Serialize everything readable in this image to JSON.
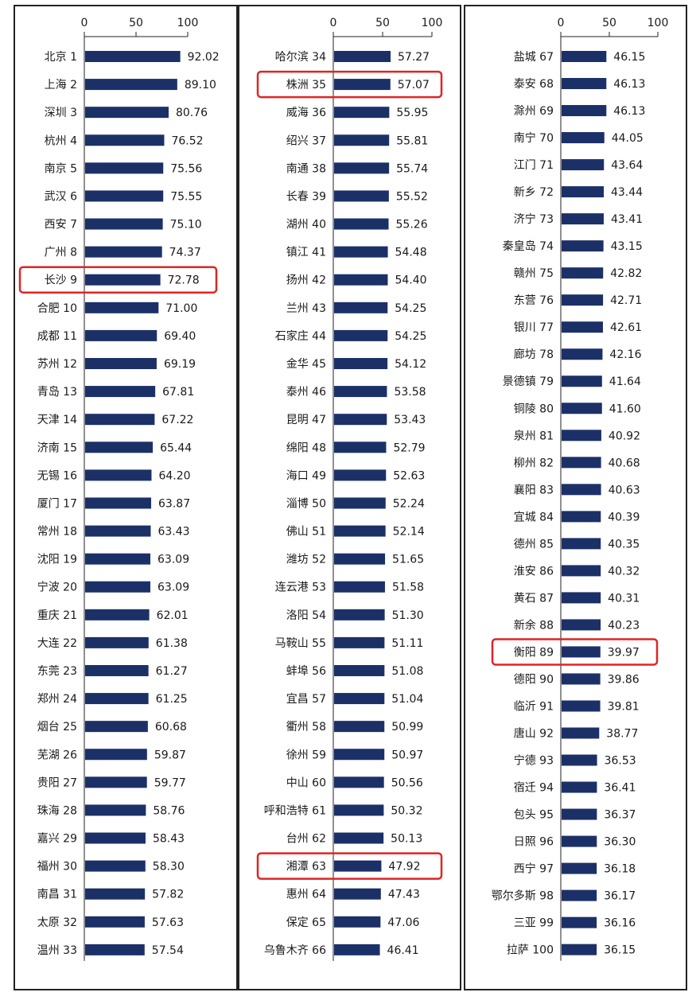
{
  "chart_data": [
    {
      "type": "bar",
      "orientation": "horizontal",
      "xlim": [
        0,
        100
      ],
      "xticks": [
        "0",
        "50",
        "100"
      ],
      "categories": [
        "北京 1",
        "上海 2",
        "深圳 3",
        "杭州 4",
        "南京 5",
        "武汉 6",
        "西安 7",
        "广州 8",
        "长沙 9",
        "合肥 10",
        "成都 11",
        "苏州 12",
        "青岛 13",
        "天津 14",
        "济南 15",
        "无锡 16",
        "厦门 17",
        "常州 18",
        "沈阳 19",
        "宁波 20",
        "重庆 21",
        "大连 22",
        "东莞 23",
        "郑州 24",
        "烟台 25",
        "芜湖 26",
        "贵阳 27",
        "珠海 28",
        "嘉兴 29",
        "福州 30",
        "南昌 31",
        "太原 32",
        "温州 33"
      ],
      "values": [
        92.02,
        89.1,
        80.76,
        76.52,
        75.56,
        75.55,
        75.1,
        74.37,
        72.78,
        71.0,
        69.4,
        69.19,
        67.81,
        67.22,
        65.44,
        64.2,
        63.87,
        63.43,
        63.09,
        63.09,
        62.01,
        61.38,
        61.27,
        61.25,
        60.68,
        59.87,
        59.77,
        58.76,
        58.43,
        58.3,
        57.82,
        57.63,
        57.54
      ],
      "labels": [
        "92.02",
        "89.10",
        "80.76",
        "76.52",
        "75.56",
        "75.55",
        "75.10",
        "74.37",
        "72.78",
        "71.00",
        "69.40",
        "69.19",
        "67.81",
        "67.22",
        "65.44",
        "64.20",
        "63.87",
        "63.43",
        "63.09",
        "63.09",
        "62.01",
        "61.38",
        "61.27",
        "61.25",
        "60.68",
        "59.87",
        "59.77",
        "58.76",
        "58.43",
        "58.30",
        "57.82",
        "57.63",
        "57.54"
      ],
      "highlighted": [
        "长沙 9"
      ]
    },
    {
      "type": "bar",
      "orientation": "horizontal",
      "xlim": [
        0,
        100
      ],
      "xticks": [
        "0",
        "50",
        "100"
      ],
      "categories": [
        "哈尔滨 34",
        "株洲 35",
        "威海 36",
        "绍兴 37",
        "南通 38",
        "长春 39",
        "湖州 40",
        "镇江 41",
        "扬州 42",
        "兰州 43",
        "石家庄 44",
        "金华 45",
        "泰州 46",
        "昆明 47",
        "绵阳 48",
        "海口 49",
        "淄博 50",
        "佛山 51",
        "潍坊 52",
        "连云港 53",
        "洛阳 54",
        "马鞍山 55",
        "蚌埠 56",
        "宜昌 57",
        "衢州 58",
        "徐州 59",
        "中山 60",
        "呼和浩特 61",
        "台州 62",
        "湘潭 63",
        "惠州 64",
        "保定 65",
        "乌鲁木齐 66"
      ],
      "values": [
        57.27,
        57.07,
        55.95,
        55.81,
        55.74,
        55.52,
        55.26,
        54.48,
        54.4,
        54.25,
        54.25,
        54.12,
        53.58,
        53.43,
        52.79,
        52.63,
        52.24,
        52.14,
        51.65,
        51.58,
        51.3,
        51.11,
        51.08,
        51.04,
        50.99,
        50.97,
        50.56,
        50.32,
        50.13,
        47.92,
        47.43,
        47.06,
        46.41
      ],
      "labels": [
        "57.27",
        "57.07",
        "55.95",
        "55.81",
        "55.74",
        "55.52",
        "55.26",
        "54.48",
        "54.40",
        "54.25",
        "54.25",
        "54.12",
        "53.58",
        "53.43",
        "52.79",
        "52.63",
        "52.24",
        "52.14",
        "51.65",
        "51.58",
        "51.30",
        "51.11",
        "51.08",
        "51.04",
        "50.99",
        "50.97",
        "50.56",
        "50.32",
        "50.13",
        "47.92",
        "47.43",
        "47.06",
        "46.41"
      ],
      "highlighted": [
        "株洲 35",
        "湘潭 63"
      ]
    },
    {
      "type": "bar",
      "orientation": "horizontal",
      "xlim": [
        0,
        100
      ],
      "xticks": [
        "0",
        "50",
        "100"
      ],
      "categories": [
        "盐城 67",
        "泰安 68",
        "滁州 69",
        "南宁 70",
        "江门 71",
        "新乡 72",
        "济宁 73",
        "秦皇岛 74",
        "赣州 75",
        "东营 76",
        "银川 77",
        "廊坊 78",
        "景德镇 79",
        "铜陵 80",
        "泉州 81",
        "柳州 82",
        "襄阳 83",
        "宜城 84",
        "德州 85",
        "淮安 86",
        "黄石 87",
        "新余 88",
        "衡阳 89",
        "德阳 90",
        "临沂 91",
        "唐山 92",
        "宁德 93",
        "宿迁 94",
        "包头 95",
        "日照 96",
        "西宁 97",
        "鄂尔多斯 98",
        "三亚 99",
        "拉萨 100"
      ],
      "values": [
        46.15,
        46.13,
        46.13,
        44.05,
        43.64,
        43.44,
        43.41,
        43.15,
        42.82,
        42.71,
        42.61,
        42.16,
        41.64,
        41.6,
        40.92,
        40.68,
        40.63,
        40.39,
        40.35,
        40.32,
        40.31,
        40.23,
        39.97,
        39.86,
        39.81,
        38.77,
        36.53,
        36.41,
        36.37,
        36.3,
        36.18,
        36.17,
        36.16,
        36.15
      ],
      "labels": [
        "46.15",
        "46.13",
        "46.13",
        "44.05",
        "43.64",
        "43.44",
        "43.41",
        "43.15",
        "42.82",
        "42.71",
        "42.61",
        "42.16",
        "41.64",
        "41.60",
        "40.92",
        "40.68",
        "40.63",
        "40.39",
        "40.35",
        "40.32",
        "40.31",
        "40.23",
        "39.97",
        "39.86",
        "39.81",
        "38.77",
        "36.53",
        "36.41",
        "36.37",
        "36.30",
        "36.18",
        "36.17",
        "36.16",
        "36.15"
      ],
      "highlighted": [
        "衡阳 89"
      ]
    }
  ],
  "colors": {
    "bar": "#1c3068",
    "highlight_box": "#e02424",
    "frame": "#222222",
    "text": "#1a1a1a"
  }
}
